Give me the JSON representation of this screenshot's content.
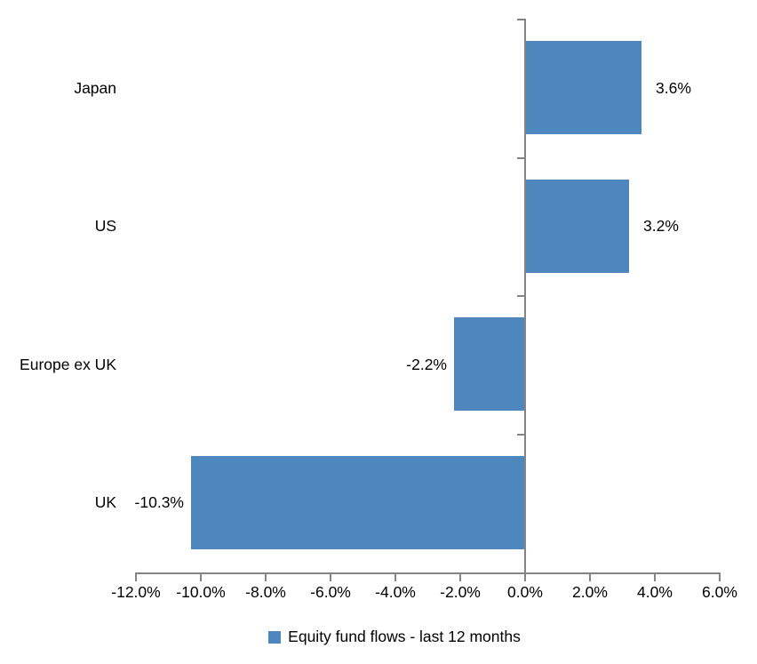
{
  "chart_data": {
    "type": "bar",
    "orientation": "horizontal",
    "title": "",
    "series_name": "Equity fund flows - last 12 months",
    "categories": [
      "Japan",
      "US",
      "Europe ex UK",
      "UK"
    ],
    "values": [
      3.6,
      3.2,
      -2.2,
      -10.3
    ],
    "data_labels": [
      "3.6%",
      "3.2%",
      "-2.2%",
      "-10.3%"
    ],
    "xlim": [
      -12,
      6
    ],
    "x_tick_step": 2,
    "x_tick_labels": [
      "-12.0%",
      "-10.0%",
      "-8.0%",
      "-6.0%",
      "-4.0%",
      "-2.0%",
      "0.0%",
      "2.0%",
      "4.0%",
      "6.0%"
    ],
    "grid": "off",
    "legend_position": "bottom",
    "colors": {
      "bar": "#4E87BE",
      "axis": "#848484",
      "text": "#000000",
      "background": "#FFFFFF"
    }
  }
}
